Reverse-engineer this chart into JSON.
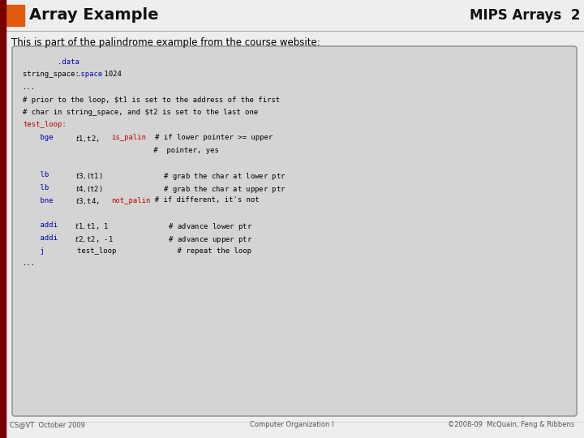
{
  "title_left": "Array Example",
  "title_right": "MIPS Arrays  2",
  "header_orange_rect": "#e05a10",
  "slide_bg": "#eeeeee",
  "intro_text": "This is part of the palindrome example from the course website:",
  "code_box_bg": "#d4d4d4",
  "code_box_border": "#999999",
  "footer_left": "CS@VT  October 2009",
  "footer_center": "Computer Organization I",
  "footer_right": "©2008-09  McQuain, Feng & Ribbens",
  "dark_red_bar": "#7a0000",
  "code_lines": [
    {
      "parts": [
        {
          "text": "        .data",
          "color": "#0000bb"
        }
      ]
    },
    {
      "parts": [
        {
          "text": "string_space: ",
          "color": "#000000"
        },
        {
          "text": ".space",
          "color": "#0000bb"
        },
        {
          "text": " 1024",
          "color": "#000000"
        }
      ]
    },
    {
      "parts": [
        {
          "text": "...",
          "color": "#000000"
        }
      ]
    },
    {
      "parts": [
        {
          "text": "# prior to the loop, $t1 is set to the address of the first",
          "color": "#000000"
        }
      ]
    },
    {
      "parts": [
        {
          "text": "# char in string_space, and $t2 is set to the last one",
          "color": "#000000"
        }
      ]
    },
    {
      "parts": [
        {
          "text": "test_loop:",
          "color": "#bb0000"
        }
      ]
    },
    {
      "parts": [
        {
          "text": "    bge",
          "color": "#0000bb"
        },
        {
          "text": "      $t1, $t2, ",
          "color": "#000000"
        },
        {
          "text": "is_palin",
          "color": "#bb0000"
        },
        {
          "text": "   # if lower pointer >= upper",
          "color": "#000000"
        }
      ]
    },
    {
      "parts": [
        {
          "text": "                              #  pointer, yes",
          "color": "#000000"
        }
      ]
    },
    {
      "parts": [
        {
          "text": "",
          "color": "#000000"
        }
      ]
    },
    {
      "parts": [
        {
          "text": "    lb",
          "color": "#0000bb"
        },
        {
          "text": "       $t3, ($t1)              # grab the char at lower ptr",
          "color": "#000000"
        }
      ]
    },
    {
      "parts": [
        {
          "text": "    lb",
          "color": "#0000bb"
        },
        {
          "text": "       $t4, ($t2)              # grab the char at upper ptr",
          "color": "#000000"
        }
      ]
    },
    {
      "parts": [
        {
          "text": "    bne",
          "color": "#0000bb"
        },
        {
          "text": "      $t3, $t4, ",
          "color": "#000000"
        },
        {
          "text": "not_palin",
          "color": "#bb0000"
        },
        {
          "text": "  # if different, it's not",
          "color": "#000000"
        }
      ]
    },
    {
      "parts": [
        {
          "text": "",
          "color": "#000000"
        }
      ]
    },
    {
      "parts": [
        {
          "text": "    addi",
          "color": "#0000bb"
        },
        {
          "text": "     $t1, $t1, 1              # advance lower ptr",
          "color": "#000000"
        }
      ]
    },
    {
      "parts": [
        {
          "text": "    addi",
          "color": "#0000bb"
        },
        {
          "text": "     $t2, $t2, -1             # advance upper ptr",
          "color": "#000000"
        }
      ]
    },
    {
      "parts": [
        {
          "text": "    j",
          "color": "#0000bb"
        },
        {
          "text": "        test_loop              # repeat the loop",
          "color": "#000000"
        }
      ]
    },
    {
      "parts": [
        {
          "text": "...",
          "color": "#000000"
        }
      ]
    }
  ]
}
